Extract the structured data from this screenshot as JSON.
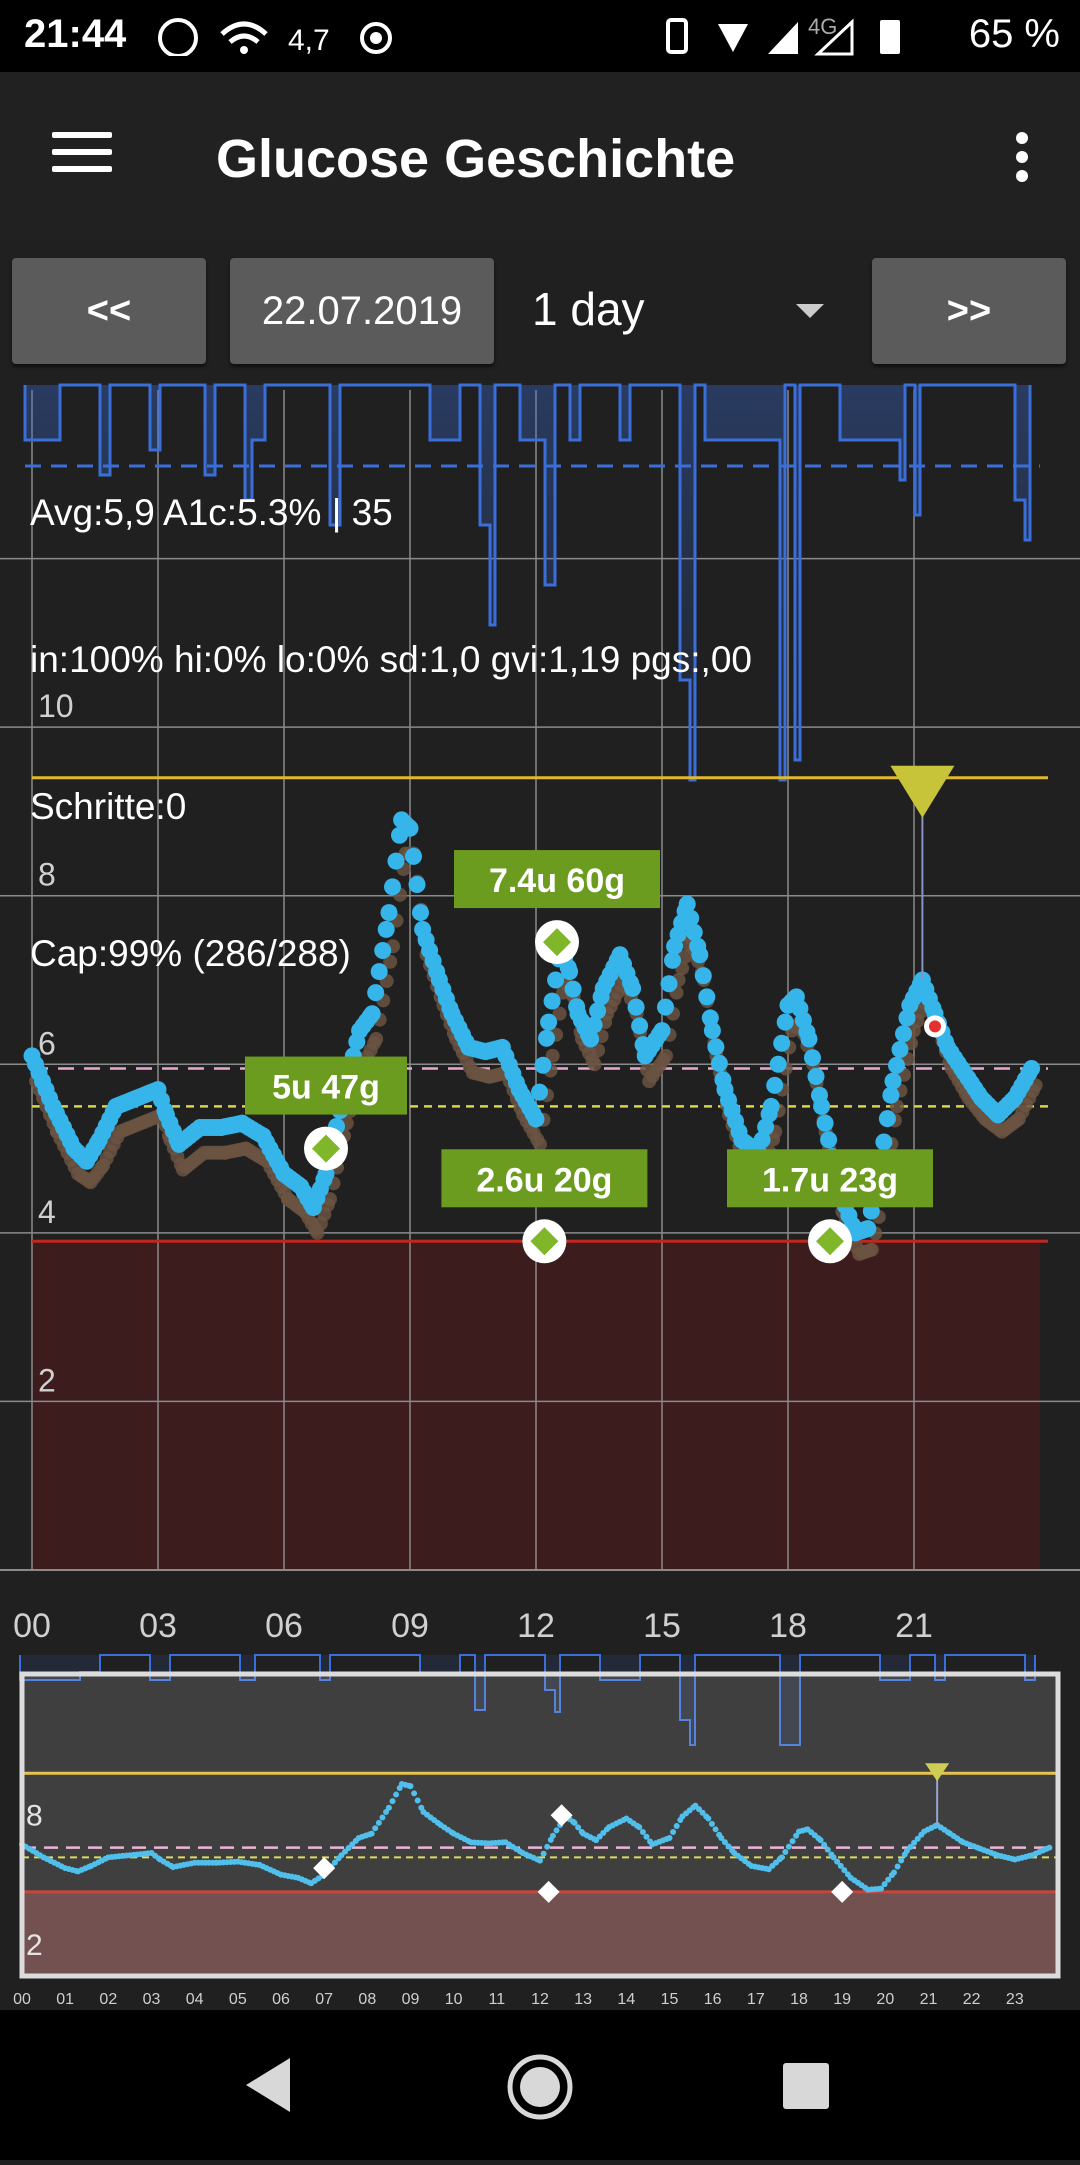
{
  "status_bar": {
    "time": "21:44",
    "speed": "4,7",
    "network": "4G",
    "battery": "65 %"
  },
  "app_bar": {
    "title": "Glucose Geschichte",
    "menu_icon": "hamburger-menu-icon",
    "more_icon": "overflow-menu-icon"
  },
  "controls": {
    "prev_label": "<<",
    "date": "22.07.2019",
    "range": "1 day",
    "next_label": ">>"
  },
  "stats": [
    "Avg:5,9 A1c:5.3% | 35",
    "in:100% hi:0% lo:0% sd:1,0 gvi:1,19 pgs:,00",
    "Schritte:0",
    "Cap:99% (286/288)"
  ],
  "colors": {
    "glucose": "#35b5e9",
    "raw": "#6b5442",
    "high_line": "#e3b82f",
    "low_line": "#c0281f",
    "low_zone": "#3d1c1e",
    "target_line": "#e8a8d0",
    "avg_line": "#d9d34a",
    "basal": "#3a6ed8",
    "treatment_label": "#6b9c1f",
    "treatment_marker": "#7fb62a",
    "predict": "#c7c43a"
  },
  "chart_data": {
    "type": "scatter",
    "ylim": [
      0,
      14
    ],
    "xlim": [
      0,
      24
    ],
    "x_ticks": [
      "00",
      "03",
      "06",
      "09",
      "12",
      "15",
      "18",
      "21"
    ],
    "y_ticks": [
      "2",
      "4",
      "6",
      "8",
      "10"
    ],
    "high": 9.4,
    "low": 3.9,
    "target": 5.95,
    "average": 5.5,
    "glucose": [
      [
        0,
        6.1
      ],
      [
        0.5,
        5.5
      ],
      [
        1,
        5.0
      ],
      [
        1.3,
        4.85
      ],
      [
        1.6,
        5.1
      ],
      [
        2,
        5.5
      ],
      [
        2.5,
        5.6
      ],
      [
        3,
        5.7
      ],
      [
        3.2,
        5.4
      ],
      [
        3.5,
        5.05
      ],
      [
        4,
        5.25
      ],
      [
        4.5,
        5.25
      ],
      [
        5,
        5.3
      ],
      [
        5.5,
        5.15
      ],
      [
        6,
        4.7
      ],
      [
        6.4,
        4.55
      ],
      [
        6.7,
        4.3
      ],
      [
        7,
        4.7
      ],
      [
        7.4,
        5.6
      ],
      [
        7.8,
        6.4
      ],
      [
        8.1,
        6.6
      ],
      [
        8.5,
        7.8
      ],
      [
        8.8,
        8.9
      ],
      [
        9.0,
        8.8
      ],
      [
        9.3,
        7.6
      ],
      [
        9.7,
        7.0
      ],
      [
        10,
        6.6
      ],
      [
        10.4,
        6.2
      ],
      [
        10.8,
        6.15
      ],
      [
        11.2,
        6.2
      ],
      [
        11.6,
        5.7
      ],
      [
        12,
        5.35
      ],
      [
        12.3,
        6.5
      ],
      [
        12.6,
        7.4
      ],
      [
        12.8,
        7.1
      ],
      [
        13,
        6.6
      ],
      [
        13.3,
        6.3
      ],
      [
        13.6,
        6.9
      ],
      [
        14,
        7.3
      ],
      [
        14.3,
        6.9
      ],
      [
        14.6,
        6.1
      ],
      [
        15,
        6.4
      ],
      [
        15.3,
        7.4
      ],
      [
        15.6,
        7.9
      ],
      [
        15.9,
        7.3
      ],
      [
        16.2,
        6.4
      ],
      [
        16.5,
        5.7
      ],
      [
        16.9,
        5.1
      ],
      [
        17.3,
        4.95
      ],
      [
        17.6,
        5.5
      ],
      [
        18,
        6.7
      ],
      [
        18.2,
        6.8
      ],
      [
        18.5,
        6.3
      ],
      [
        18.8,
        5.5
      ],
      [
        19.2,
        4.55
      ],
      [
        19.6,
        4.0
      ],
      [
        19.9,
        4.05
      ],
      [
        20.2,
        4.8
      ],
      [
        20.5,
        5.8
      ],
      [
        20.9,
        6.7
      ],
      [
        21.2,
        7.0
      ],
      [
        21.5,
        6.6
      ],
      [
        21.8,
        6.2
      ],
      [
        22.2,
        5.9
      ],
      [
        22.6,
        5.6
      ],
      [
        23,
        5.4
      ],
      [
        23.4,
        5.6
      ],
      [
        23.8,
        5.95
      ]
    ],
    "raw": [
      [
        0,
        5.8
      ],
      [
        0.5,
        5.2
      ],
      [
        1,
        4.7
      ],
      [
        1.3,
        4.6
      ],
      [
        1.6,
        4.8
      ],
      [
        2,
        5.2
      ],
      [
        2.5,
        5.3
      ],
      [
        3,
        5.4
      ],
      [
        3.2,
        5.1
      ],
      [
        3.5,
        4.75
      ],
      [
        4,
        4.95
      ],
      [
        4.5,
        4.95
      ],
      [
        5,
        5.0
      ],
      [
        5.5,
        4.85
      ],
      [
        6,
        4.4
      ],
      [
        6.4,
        4.25
      ],
      [
        6.7,
        4.0
      ],
      [
        7,
        4.4
      ],
      [
        7.4,
        5.3
      ],
      [
        7.8,
        6.0
      ],
      [
        8.1,
        6.3
      ],
      [
        8.5,
        7.4
      ],
      [
        8.8,
        8.5
      ],
      [
        9.0,
        8.5
      ],
      [
        9.3,
        7.3
      ],
      [
        9.7,
        6.7
      ],
      [
        10,
        6.3
      ],
      [
        10.4,
        5.9
      ],
      [
        10.8,
        5.85
      ],
      [
        11.2,
        5.9
      ],
      [
        11.6,
        5.4
      ],
      [
        12,
        5.05
      ],
      [
        12.3,
        6.1
      ],
      [
        12.6,
        7.0
      ],
      [
        12.8,
        6.8
      ],
      [
        13,
        6.3
      ],
      [
        13.3,
        6.0
      ],
      [
        13.6,
        6.6
      ],
      [
        14,
        7.0
      ],
      [
        14.3,
        6.6
      ],
      [
        14.6,
        5.8
      ],
      [
        15,
        6.1
      ],
      [
        15.3,
        7.0
      ],
      [
        15.6,
        7.5
      ],
      [
        15.9,
        7.0
      ],
      [
        16.2,
        6.1
      ],
      [
        16.5,
        5.4
      ],
      [
        16.9,
        4.8
      ],
      [
        17.3,
        4.65
      ],
      [
        17.6,
        5.2
      ],
      [
        18,
        6.4
      ],
      [
        18.2,
        6.5
      ],
      [
        18.5,
        6.0
      ],
      [
        18.8,
        5.2
      ],
      [
        19.2,
        4.25
      ],
      [
        19.6,
        3.75
      ],
      [
        19.9,
        3.8
      ],
      [
        20.2,
        4.5
      ],
      [
        20.5,
        5.5
      ],
      [
        20.9,
        6.4
      ],
      [
        21.2,
        6.8
      ],
      [
        21.5,
        6.4
      ],
      [
        21.8,
        5.95
      ],
      [
        22.2,
        5.6
      ],
      [
        22.6,
        5.35
      ],
      [
        23,
        5.2
      ],
      [
        23.4,
        5.35
      ],
      [
        23.8,
        5.75
      ]
    ],
    "treatments": [
      {
        "x": 7.0,
        "y": 5.0,
        "label": "5u 47g"
      },
      {
        "x": 12.5,
        "y": 7.45,
        "label": "7.4u 60g"
      },
      {
        "x": 12.2,
        "y": 3.9,
        "label": "2.6u 20g"
      },
      {
        "x": 19.0,
        "y": 3.9,
        "label": "1.7u 23g"
      }
    ],
    "prediction": {
      "x": 21.2,
      "y": 9.4
    },
    "marker": {
      "x": 21.5,
      "y": 6.45
    },
    "overview_x_ticks": [
      "00",
      "01",
      "02",
      "03",
      "04",
      "05",
      "06",
      "07",
      "08",
      "09",
      "10",
      "11",
      "12",
      "13",
      "14",
      "15",
      "16",
      "17",
      "18",
      "19",
      "20",
      "21",
      "22",
      "23"
    ],
    "overview_y_ticks": [
      "2",
      "8"
    ]
  }
}
